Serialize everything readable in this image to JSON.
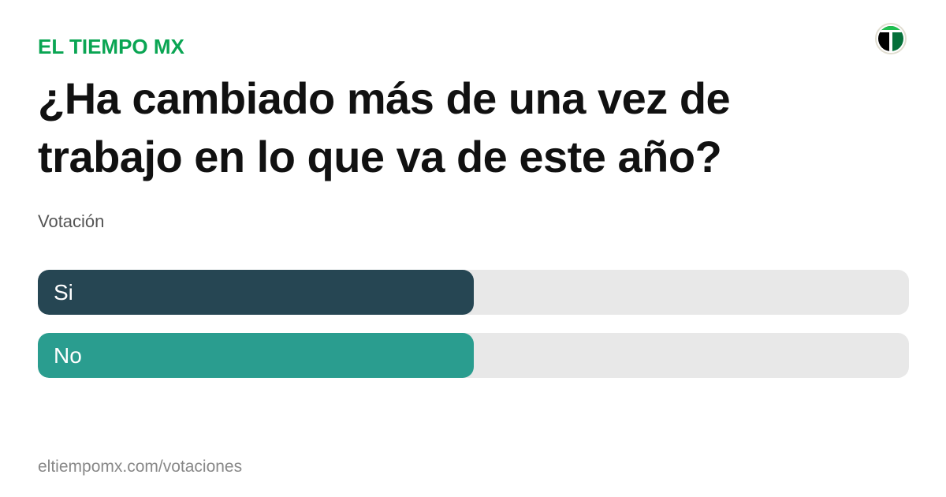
{
  "brand": "EL TIEMPO MX",
  "title": "¿Ha cambiado más de una vez de trabajo en lo que va de este año?",
  "subtitle": "Votación",
  "options": [
    {
      "label": "Si",
      "fraction": 0.5,
      "color": "#264653"
    },
    {
      "label": "No",
      "fraction": 0.5,
      "color": "#2a9d8f"
    }
  ],
  "footer": "eltiempomx.com/votaciones",
  "colors": {
    "brand": "#0aa553",
    "track": "#e8e8e8"
  }
}
